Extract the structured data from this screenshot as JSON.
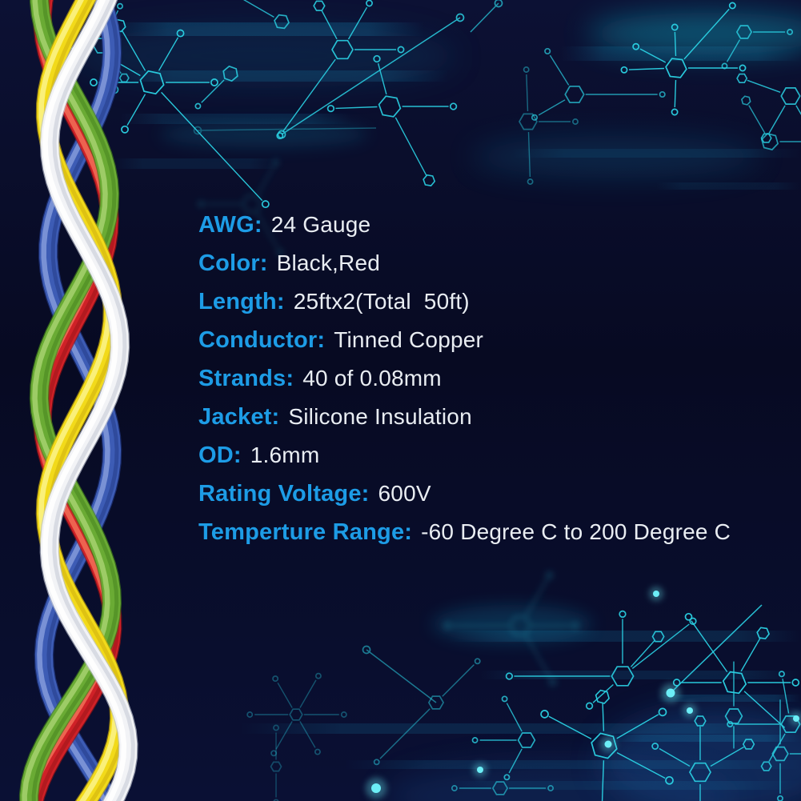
{
  "specs": {
    "items": [
      {
        "label": "AWG:",
        "value": "24 Gauge"
      },
      {
        "label": "Color:",
        "value": "Black,Red"
      },
      {
        "label": "Length:",
        "value": "25ftx2(Total  50ft)"
      },
      {
        "label": "Conductor:",
        "value": "Tinned Copper"
      },
      {
        "label": "Strands:",
        "value": "40 of 0.08mm"
      },
      {
        "label": "Jacket:",
        "value": "Silicone Insulation"
      },
      {
        "label": "OD:",
        "value": "1.6mm"
      },
      {
        "label": "Rating Voltage:",
        "value": "600V"
      },
      {
        "label": "Temperture Range:",
        "value": "-60 Degree C to 200 Degree C"
      }
    ]
  },
  "theme": {
    "background_navy": "#0a0e2c",
    "background_deep": "#070a22",
    "label_blue": "#1d9ce6",
    "value_white": "#e9edf2",
    "circuit_cyan": "#2bd3e5",
    "circuit_node_bright": "#6ceef6",
    "streak_blue": "#1899c9",
    "glow_teal": "#0fa2bc",
    "glow_blue": "#16427e"
  },
  "decor": {
    "left_graphic": "twisted-silicone-wires",
    "background_motif": "circuit-molecule-network",
    "wires": [
      {
        "name": "blue-wire",
        "color": "#3d5cb5",
        "highlight": "#8097d8",
        "shadow": "#20357f"
      },
      {
        "name": "red-wire",
        "color": "#cf2127",
        "highlight": "#ef6a55",
        "shadow": "#8e1216"
      },
      {
        "name": "green-wire",
        "color": "#6aab34",
        "highlight": "#a3cf6b",
        "shadow": "#3f7a1a"
      },
      {
        "name": "yellow-wire",
        "color": "#f2da1a",
        "highlight": "#fbf284",
        "shadow": "#c5a50c"
      },
      {
        "name": "white-wire",
        "color": "#f2f3f6",
        "highlight": "#ffffff",
        "shadow": "#b9bfcc"
      }
    ]
  }
}
